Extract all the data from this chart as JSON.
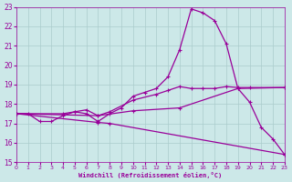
{
  "background_color": "#cce8e8",
  "grid_color": "#aacccc",
  "line_color": "#990099",
  "xlabel": "Windchill (Refroidissement éolien,°C)",
  "ylim": [
    15,
    23
  ],
  "xlim": [
    0,
    23
  ],
  "yticks": [
    15,
    16,
    17,
    18,
    19,
    20,
    21,
    22,
    23
  ],
  "xticks": [
    0,
    1,
    2,
    3,
    4,
    5,
    6,
    7,
    8,
    9,
    10,
    11,
    12,
    13,
    14,
    15,
    16,
    17,
    18,
    19,
    20,
    21,
    22,
    23
  ],
  "series": [
    {
      "x": [
        0,
        1,
        2,
        3,
        4,
        5,
        6,
        7,
        8,
        9,
        10,
        11,
        12,
        13,
        14,
        15,
        16,
        17,
        18,
        19,
        20,
        21,
        22,
        23
      ],
      "y": [
        17.5,
        17.5,
        17.1,
        17.1,
        17.4,
        17.6,
        17.5,
        17.1,
        17.5,
        17.8,
        18.4,
        18.6,
        18.8,
        19.4,
        20.8,
        22.9,
        22.7,
        22.3,
        21.1,
        18.8,
        18.1,
        16.8,
        16.2,
        15.4
      ]
    },
    {
      "x": [
        0,
        4,
        5,
        6,
        7,
        8,
        10,
        12,
        13,
        14,
        15,
        16,
        17,
        18,
        19,
        20,
        23
      ],
      "y": [
        17.5,
        17.5,
        17.6,
        17.7,
        17.4,
        17.6,
        18.2,
        18.5,
        18.7,
        18.9,
        18.8,
        18.8,
        18.8,
        18.9,
        18.85,
        18.85,
        18.85
      ]
    },
    {
      "x": [
        0,
        7,
        10,
        14,
        19,
        23
      ],
      "y": [
        17.5,
        17.4,
        17.65,
        17.8,
        18.8,
        18.85
      ]
    },
    {
      "x": [
        0,
        7,
        8,
        23
      ],
      "y": [
        17.5,
        17.05,
        17.0,
        15.4
      ]
    }
  ]
}
